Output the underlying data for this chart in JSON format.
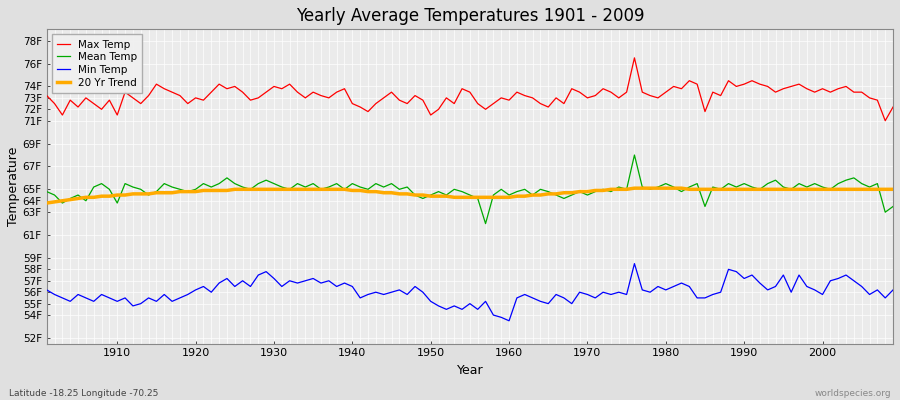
{
  "title": "Yearly Average Temperatures 1901 - 2009",
  "xlabel": "Year",
  "ylabel": "Temperature",
  "lat_lon_label": "Latitude -18.25 Longitude -70.25",
  "watermark": "worldspecies.org",
  "years": [
    1901,
    1902,
    1903,
    1904,
    1905,
    1906,
    1907,
    1908,
    1909,
    1910,
    1911,
    1912,
    1913,
    1914,
    1915,
    1916,
    1917,
    1918,
    1919,
    1920,
    1921,
    1922,
    1923,
    1924,
    1925,
    1926,
    1927,
    1928,
    1929,
    1930,
    1931,
    1932,
    1933,
    1934,
    1935,
    1936,
    1937,
    1938,
    1939,
    1940,
    1941,
    1942,
    1943,
    1944,
    1945,
    1946,
    1947,
    1948,
    1949,
    1950,
    1951,
    1952,
    1953,
    1954,
    1955,
    1956,
    1957,
    1958,
    1959,
    1960,
    1961,
    1962,
    1963,
    1964,
    1965,
    1966,
    1967,
    1968,
    1969,
    1970,
    1971,
    1972,
    1973,
    1974,
    1975,
    1976,
    1977,
    1978,
    1979,
    1980,
    1981,
    1982,
    1983,
    1984,
    1985,
    1986,
    1987,
    1988,
    1989,
    1990,
    1991,
    1992,
    1993,
    1994,
    1995,
    1996,
    1997,
    1998,
    1999,
    2000,
    2001,
    2002,
    2003,
    2004,
    2005,
    2006,
    2007,
    2008,
    2009
  ],
  "max_temp": [
    73.2,
    72.5,
    71.5,
    72.8,
    72.2,
    73.0,
    72.5,
    72.0,
    72.8,
    71.5,
    73.5,
    73.0,
    72.5,
    73.2,
    74.2,
    73.8,
    73.5,
    73.2,
    72.5,
    73.0,
    72.8,
    73.5,
    74.2,
    73.8,
    74.0,
    73.5,
    72.8,
    73.0,
    73.5,
    74.0,
    73.8,
    74.2,
    73.5,
    73.0,
    73.5,
    73.2,
    73.0,
    73.5,
    73.8,
    72.5,
    72.2,
    71.8,
    72.5,
    73.0,
    73.5,
    72.8,
    72.5,
    73.2,
    72.8,
    71.5,
    72.0,
    73.0,
    72.5,
    73.8,
    73.5,
    72.5,
    72.0,
    72.5,
    73.0,
    72.8,
    73.5,
    73.2,
    73.0,
    72.5,
    72.2,
    73.0,
    72.5,
    73.8,
    73.5,
    73.0,
    73.2,
    73.8,
    73.5,
    73.0,
    73.5,
    76.5,
    73.5,
    73.2,
    73.0,
    73.5,
    74.0,
    73.8,
    74.5,
    74.2,
    71.8,
    73.5,
    73.2,
    74.5,
    74.0,
    74.2,
    74.5,
    74.2,
    74.0,
    73.5,
    73.8,
    74.0,
    74.2,
    73.8,
    73.5,
    73.8,
    73.5,
    73.8,
    74.0,
    73.5,
    73.5,
    73.0,
    72.8,
    71.0,
    72.2
  ],
  "mean_temp": [
    64.8,
    64.5,
    63.8,
    64.2,
    64.5,
    64.0,
    65.2,
    65.5,
    65.0,
    63.8,
    65.5,
    65.2,
    65.0,
    64.5,
    64.8,
    65.5,
    65.2,
    65.0,
    64.8,
    65.0,
    65.5,
    65.2,
    65.5,
    66.0,
    65.5,
    65.2,
    65.0,
    65.5,
    65.8,
    65.5,
    65.2,
    65.0,
    65.5,
    65.2,
    65.5,
    65.0,
    65.2,
    65.5,
    65.0,
    65.5,
    65.2,
    65.0,
    65.5,
    65.2,
    65.5,
    65.0,
    65.2,
    64.5,
    64.2,
    64.5,
    64.8,
    64.5,
    65.0,
    64.8,
    64.5,
    64.2,
    62.0,
    64.5,
    65.0,
    64.5,
    64.8,
    65.0,
    64.5,
    65.0,
    64.8,
    64.5,
    64.2,
    64.5,
    64.8,
    64.5,
    64.8,
    65.0,
    64.8,
    65.2,
    65.0,
    68.0,
    65.2,
    65.0,
    65.2,
    65.5,
    65.2,
    64.8,
    65.2,
    65.5,
    63.5,
    65.2,
    65.0,
    65.5,
    65.2,
    65.5,
    65.2,
    65.0,
    65.5,
    65.8,
    65.2,
    65.0,
    65.5,
    65.2,
    65.5,
    65.2,
    65.0,
    65.5,
    65.8,
    66.0,
    65.5,
    65.2,
    65.5,
    63.0,
    63.5
  ],
  "min_temp": [
    56.2,
    55.8,
    55.5,
    55.2,
    55.8,
    55.5,
    55.2,
    55.8,
    55.5,
    55.2,
    55.5,
    54.8,
    55.0,
    55.5,
    55.2,
    55.8,
    55.2,
    55.5,
    55.8,
    56.2,
    56.5,
    56.0,
    56.8,
    57.2,
    56.5,
    57.0,
    56.5,
    57.5,
    57.8,
    57.2,
    56.5,
    57.0,
    56.8,
    57.0,
    57.2,
    56.8,
    57.0,
    56.5,
    56.8,
    56.5,
    55.5,
    55.8,
    56.0,
    55.8,
    56.0,
    56.2,
    55.8,
    56.5,
    56.0,
    55.2,
    54.8,
    54.5,
    54.8,
    54.5,
    55.0,
    54.5,
    55.2,
    54.0,
    53.8,
    53.5,
    55.5,
    55.8,
    55.5,
    55.2,
    55.0,
    55.8,
    55.5,
    55.0,
    56.0,
    55.8,
    55.5,
    56.0,
    55.8,
    56.0,
    55.8,
    58.5,
    56.2,
    56.0,
    56.5,
    56.2,
    56.5,
    56.8,
    56.5,
    55.5,
    55.5,
    55.8,
    56.0,
    58.0,
    57.8,
    57.2,
    57.5,
    56.8,
    56.2,
    56.5,
    57.5,
    56.0,
    57.5,
    56.5,
    56.2,
    55.8,
    57.0,
    57.2,
    57.5,
    57.0,
    56.5,
    55.8,
    56.2,
    55.5,
    56.2
  ],
  "trend_20yr": [
    63.8,
    63.9,
    64.0,
    64.1,
    64.2,
    64.3,
    64.3,
    64.4,
    64.4,
    64.5,
    64.5,
    64.6,
    64.6,
    64.6,
    64.7,
    64.7,
    64.7,
    64.8,
    64.8,
    64.8,
    64.9,
    64.9,
    64.9,
    64.9,
    65.0,
    65.0,
    65.0,
    65.0,
    65.0,
    65.0,
    65.0,
    65.0,
    65.0,
    65.0,
    65.0,
    65.0,
    65.0,
    65.0,
    65.0,
    64.9,
    64.9,
    64.8,
    64.8,
    64.7,
    64.7,
    64.6,
    64.6,
    64.5,
    64.5,
    64.4,
    64.4,
    64.4,
    64.3,
    64.3,
    64.3,
    64.3,
    64.3,
    64.3,
    64.3,
    64.3,
    64.4,
    64.4,
    64.5,
    64.5,
    64.6,
    64.6,
    64.7,
    64.7,
    64.8,
    64.8,
    64.9,
    64.9,
    65.0,
    65.0,
    65.0,
    65.1,
    65.1,
    65.1,
    65.1,
    65.1,
    65.1,
    65.1,
    65.0,
    65.0,
    65.0,
    65.0,
    65.0,
    65.0,
    65.0,
    65.0,
    65.0,
    65.0,
    65.0,
    65.0,
    65.0,
    65.0,
    65.0,
    65.0,
    65.0,
    65.0,
    65.0,
    65.0,
    65.0,
    65.0,
    65.0,
    65.0,
    65.0,
    65.0,
    65.0
  ],
  "max_color": "#ff0000",
  "mean_color": "#00aa00",
  "min_color": "#0000ff",
  "trend_color": "#ffaa00",
  "bg_color": "#e0e0e0",
  "plot_bg_color": "#ebebeb",
  "grid_color": "#ffffff",
  "ytick_vals": [
    52,
    54,
    55,
    56,
    57,
    58,
    59,
    61,
    63,
    64,
    65,
    67,
    69,
    71,
    72,
    73,
    74,
    76,
    78
  ],
  "ytick_labels": [
    "52F",
    "54F",
    "55F",
    "56F",
    "57F",
    "58F",
    "59F",
    "61F",
    "63F",
    "64F",
    "65F",
    "67F",
    "69F",
    "71F",
    "72F",
    "73F",
    "74F",
    "76F",
    "78F"
  ],
  "ylim_min": 51.5,
  "ylim_max": 79,
  "xlim_min": 1901,
  "xlim_max": 2009,
  "xticks": [
    1910,
    1920,
    1930,
    1940,
    1950,
    1960,
    1970,
    1980,
    1990,
    2000
  ]
}
